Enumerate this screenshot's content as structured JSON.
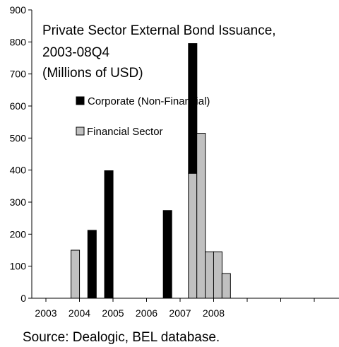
{
  "chart_data": {
    "type": "bar",
    "stacked": true,
    "title_lines": [
      "Private Sector External Bond Issuance,",
      "2003-08Q4",
      "(Millions of USD)"
    ],
    "ylim": [
      0,
      900
    ],
    "yticks": [
      0,
      100,
      200,
      300,
      400,
      500,
      600,
      700,
      800,
      900
    ],
    "xtick_labels": [
      "2003",
      "2004",
      "2005",
      "2006",
      "2007",
      "2008"
    ],
    "legend": [
      {
        "name": "Corporate (Non-Financial)",
        "color": "#000000"
      },
      {
        "name": "Financial Sector",
        "color": "#c0c0c0"
      }
    ],
    "grid": false,
    "bars": [
      {
        "period": "2003Q4",
        "financial": 150,
        "corporate": 0
      },
      {
        "period": "2004Q2",
        "financial": 0,
        "corporate": 212
      },
      {
        "period": "2004Q4",
        "financial": 0,
        "corporate": 398
      },
      {
        "period": "2006Q3",
        "financial": 0,
        "corporate": 274
      },
      {
        "period": "2007Q2",
        "financial": 390,
        "corporate": 405
      },
      {
        "period": "2007Q3",
        "financial": 515,
        "corporate": 0
      },
      {
        "period": "2007Q4",
        "financial": 145,
        "corporate": 0
      },
      {
        "period": "2008Q1",
        "financial": 145,
        "corporate": 0
      },
      {
        "period": "2008Q2",
        "financial": 77,
        "corporate": 0
      }
    ],
    "source": "Source: Dealogic, BEL database."
  }
}
